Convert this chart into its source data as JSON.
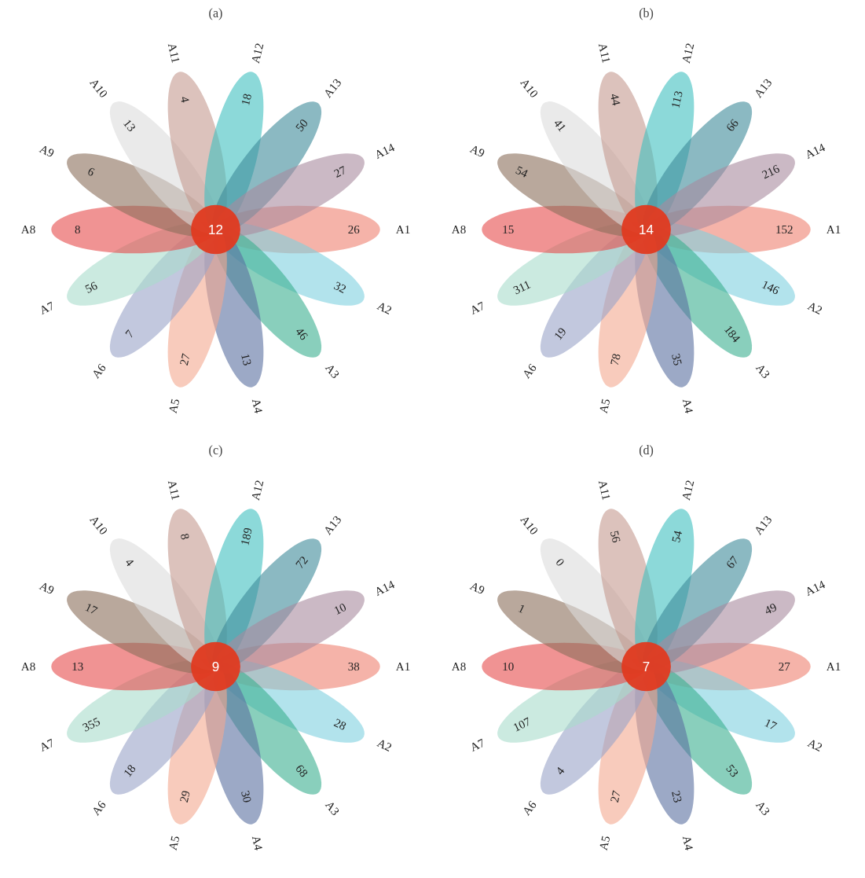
{
  "chart_data": [
    {
      "type": "other",
      "title": "(a)",
      "data_labels": true,
      "categories": [
        "A1",
        "A2",
        "A3",
        "A4",
        "A5",
        "A6",
        "A7",
        "A8",
        "A9",
        "A10",
        "A11",
        "A12",
        "A13",
        "A14"
      ],
      "values": [
        26,
        32,
        46,
        13,
        27,
        7,
        56,
        8,
        6,
        13,
        4,
        18,
        50,
        27
      ],
      "colors": [
        "#ee8070",
        "#7fd0e0",
        "#3aaf8f",
        "#5a6fa0",
        "#f4a98f",
        "#9aa3c8",
        "#a8dccc",
        "#e64b4b",
        "#8b6e5a",
        "#dcdcdc",
        "#c49a90",
        "#3fbfbf",
        "#3d8a9a",
        "#a88a9e"
      ],
      "annotations": [
        "12"
      ]
    },
    {
      "type": "other",
      "title": "(b)",
      "data_labels": true,
      "categories": [
        "A1",
        "A2",
        "A3",
        "A4",
        "A5",
        "A6",
        "A7",
        "A8",
        "A9",
        "A10",
        "A11",
        "A12",
        "A13",
        "A14"
      ],
      "values": [
        152,
        146,
        184,
        35,
        78,
        19,
        311,
        15,
        54,
        41,
        44,
        113,
        66,
        216
      ],
      "colors": [
        "#ee8070",
        "#7fd0e0",
        "#3aaf8f",
        "#5a6fa0",
        "#f4a98f",
        "#9aa3c8",
        "#a8dccc",
        "#e64b4b",
        "#8b6e5a",
        "#dcdcdc",
        "#c49a90",
        "#3fbfbf",
        "#3d8a9a",
        "#a88a9e"
      ],
      "annotations": [
        "14"
      ]
    },
    {
      "type": "other",
      "title": "(c)",
      "data_labels": true,
      "categories": [
        "A1",
        "A2",
        "A3",
        "A4",
        "A5",
        "A6",
        "A7",
        "A8",
        "A9",
        "A10",
        "A11",
        "A12",
        "A13",
        "A14"
      ],
      "values": [
        38,
        28,
        68,
        30,
        29,
        18,
        355,
        13,
        17,
        4,
        8,
        189,
        72,
        10
      ],
      "colors": [
        "#ee8070",
        "#7fd0e0",
        "#3aaf8f",
        "#5a6fa0",
        "#f4a98f",
        "#9aa3c8",
        "#a8dccc",
        "#e64b4b",
        "#8b6e5a",
        "#dcdcdc",
        "#c49a90",
        "#3fbfbf",
        "#3d8a9a",
        "#a88a9e"
      ],
      "annotations": [
        "9"
      ]
    },
    {
      "type": "other",
      "title": "(d)",
      "data_labels": true,
      "categories": [
        "A1",
        "A2",
        "A3",
        "A4",
        "A5",
        "A6",
        "A7",
        "A8",
        "A9",
        "A10",
        "A11",
        "A12",
        "A13",
        "A14"
      ],
      "values": [
        27,
        17,
        53,
        23,
        27,
        4,
        107,
        10,
        1,
        0,
        56,
        54,
        67,
        49
      ],
      "colors": [
        "#ee8070",
        "#7fd0e0",
        "#3aaf8f",
        "#5a6fa0",
        "#f4a98f",
        "#9aa3c8",
        "#a8dccc",
        "#e64b4b",
        "#8b6e5a",
        "#dcdcdc",
        "#c49a90",
        "#3fbfbf",
        "#3d8a9a",
        "#a88a9e"
      ],
      "annotations": [
        "7"
      ]
    }
  ]
}
